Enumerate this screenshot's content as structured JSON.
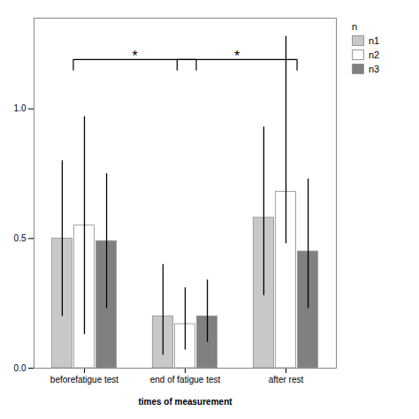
{
  "chart_data": {
    "type": "bar",
    "xlabel": "times of measurement",
    "categories": [
      "beforefatigue test",
      "end of fatigue test",
      "after rest"
    ],
    "series": [
      {
        "name": "n1",
        "color": "#c8c8c8",
        "values": [
          0.5,
          0.2,
          0.58
        ],
        "errors_up": [
          0.3,
          0.2,
          0.35
        ],
        "errors_down": [
          0.3,
          0.15,
          0.3
        ]
      },
      {
        "name": "n2",
        "color": "#ffffff",
        "values": [
          0.55,
          0.17,
          0.68
        ],
        "errors_up": [
          0.42,
          0.14,
          0.6
        ],
        "errors_down": [
          0.42,
          0.1,
          0.2
        ]
      },
      {
        "name": "n3",
        "color": "#808080",
        "values": [
          0.49,
          0.2,
          0.45
        ],
        "errors_up": [
          0.26,
          0.14,
          0.28
        ],
        "errors_down": [
          0.26,
          0.1,
          0.22
        ]
      }
    ],
    "ylim": [
      0,
      1.35
    ],
    "yticks": [
      {
        "value": 0,
        "label": "0.0"
      },
      0.5,
      {
        "value": 1,
        "label": "1.0"
      }
    ],
    "grid": false,
    "legend": "right",
    "legend_title": "n",
    "annotations": [
      {
        "text": "*",
        "from": "beforefatigue test",
        "to": "end of fatigue test",
        "y": 1.15,
        "height": 0.04
      },
      {
        "text": "*",
        "from": "end of fatigue test",
        "to": "after rest",
        "y": 1.15,
        "height": 0.04
      }
    ]
  }
}
